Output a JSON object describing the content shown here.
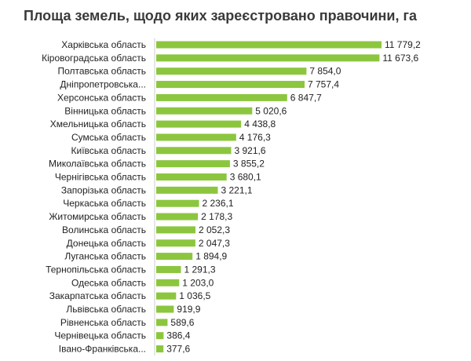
{
  "chart_data": {
    "type": "bar",
    "orientation": "horizontal",
    "title": "Площа земель, щодо яких зареєстровано правочини, га",
    "bar_color": "#8cc63f",
    "axis_color": "#cccccc",
    "categories": [
      "Харківська область",
      "Кіровоградська область",
      "Полтавська область",
      "Дніпропетровська...",
      "Херсонська область",
      "Вінницька область",
      "Хмельницька область",
      "Сумська область",
      "Київська область",
      "Миколаївська область",
      "Чернігівська область",
      "Запорізька область",
      "Черкаська область",
      "Житомирська область",
      "Волинська область",
      "Донецька область",
      "Луганська область",
      "Тернопільська область",
      "Одеська область",
      "Закарпатська область",
      "Львівська область",
      "Рівненська область",
      "Чернівецька область",
      "Івано-Франківська..."
    ],
    "values": [
      11779.2,
      11673.6,
      7854.0,
      7757.4,
      6847.7,
      5020.6,
      4438.8,
      4176.3,
      3921.6,
      3855.2,
      3680.1,
      3221.1,
      2236.1,
      2178.3,
      2052.3,
      2047.3,
      1894.9,
      1291.3,
      1203.0,
      1036.5,
      919.9,
      589.6,
      386.4,
      377.6
    ],
    "value_labels": [
      "11 779,2",
      "11 673,6",
      "7 854,0",
      "7 757,4",
      "6 847,7",
      "5 020,6",
      "4 438,8",
      "4 176,3",
      "3 921,6",
      "3 855,2",
      "3 680,1",
      "3 221,1",
      "2 236,1",
      "2 178,3",
      "2 052,3",
      "2 047,3",
      "1 894,9",
      "1 291,3",
      "1 203,0",
      "1 036,5",
      "919,9",
      "589,6",
      "386,4",
      "377,6"
    ]
  }
}
